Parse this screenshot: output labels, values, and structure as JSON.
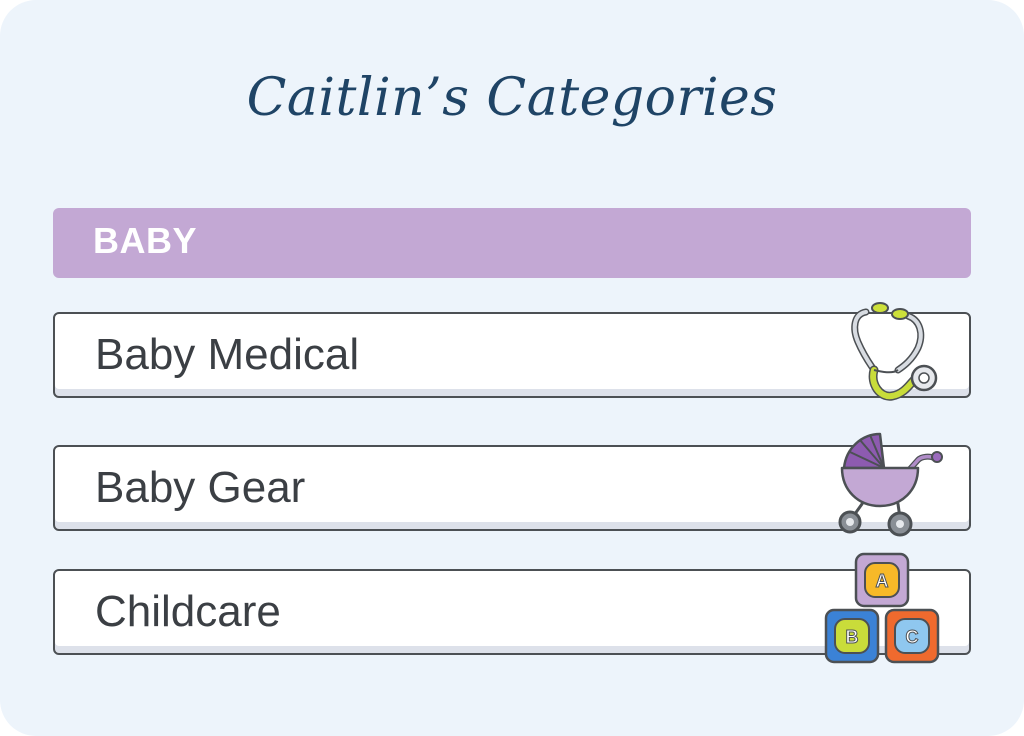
{
  "title": "Caitlin’s Categories",
  "section": {
    "label": "BABY",
    "color": "#c3a8d4"
  },
  "categories": [
    {
      "label": "Baby Medical",
      "icon": "stethoscope-icon"
    },
    {
      "label": "Baby Gear",
      "icon": "stroller-icon"
    },
    {
      "label": "Childcare",
      "icon": "abc-blocks-icon"
    }
  ],
  "blocks": {
    "a": "A",
    "b": "B",
    "c": "C"
  },
  "colors": {
    "background": "#edf4fb",
    "title": "#1f4466",
    "row_border": "#4c5054",
    "row_text": "#3b3f44"
  }
}
